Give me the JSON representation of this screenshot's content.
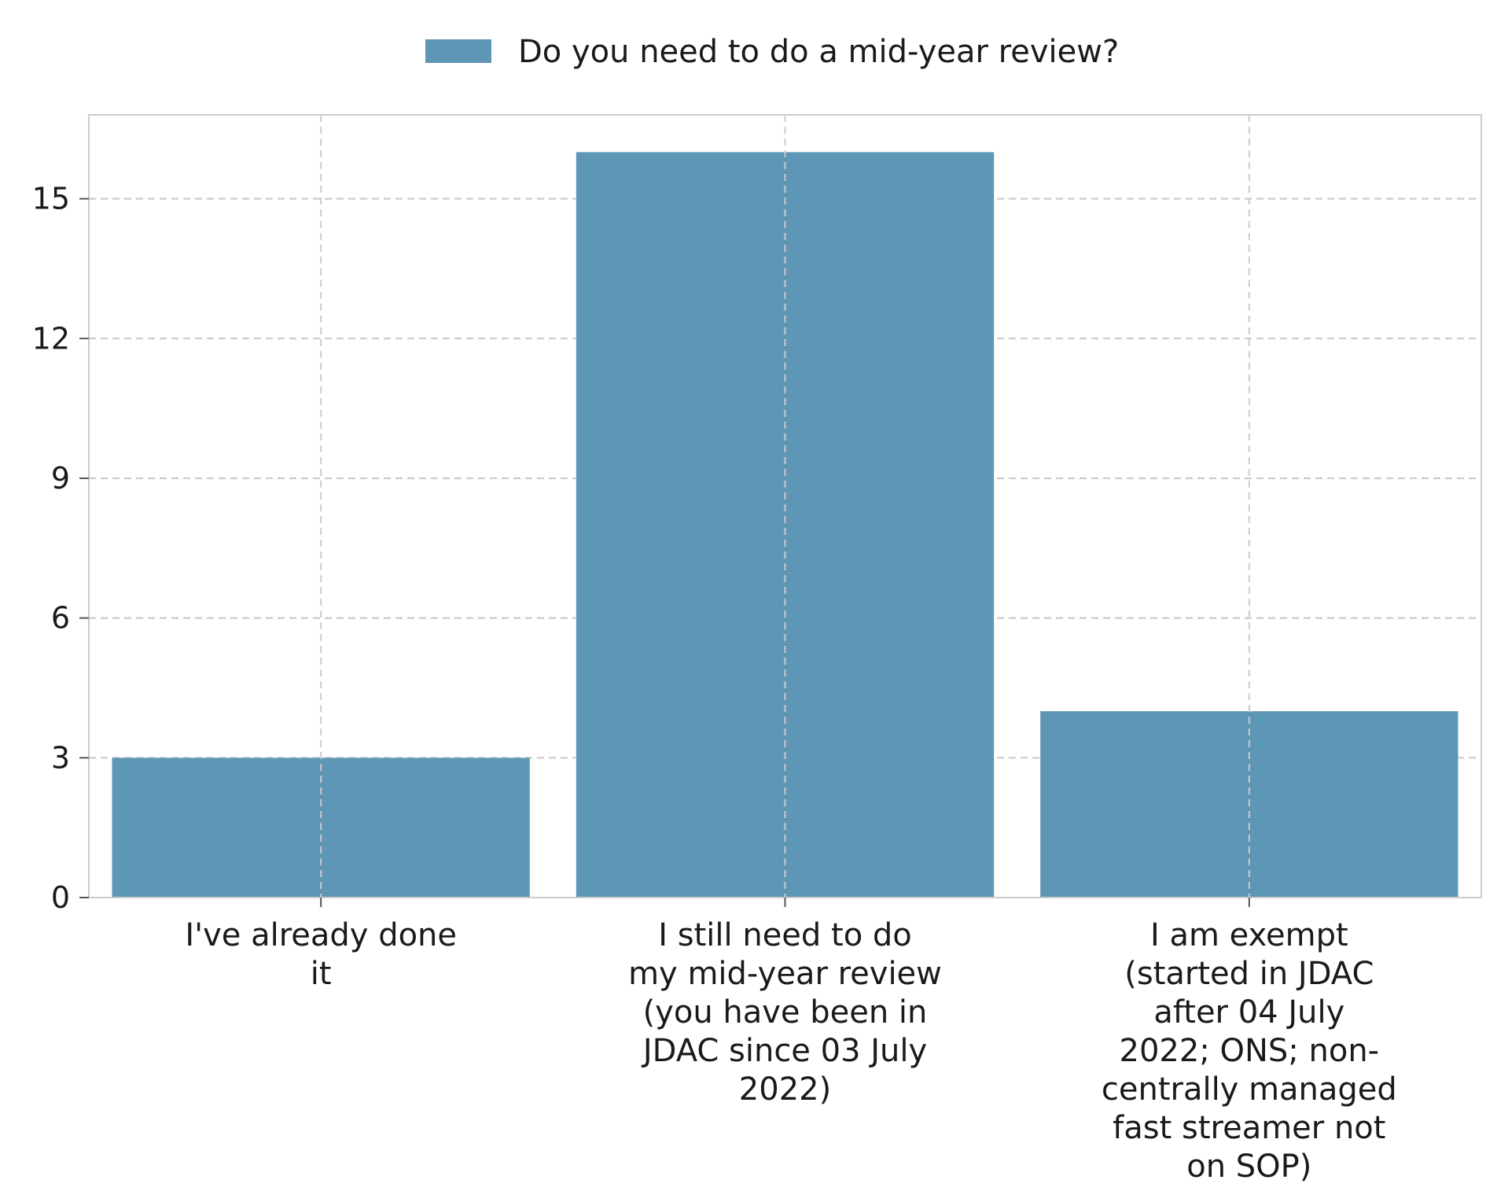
{
  "chart_data": {
    "type": "bar",
    "categories": [
      [
        "I've already done",
        "it"
      ],
      [
        "I still need to do",
        "my mid-year review",
        "(you have been in",
        "JDAC since 03 July",
        "2022)"
      ],
      [
        "I am exempt",
        "(started in JDAC",
        "after 04 July",
        "2022; ONS; non-",
        "centrally managed",
        "fast streamer not",
        "on SOP)"
      ]
    ],
    "series": [
      {
        "name": "Do you need to do a mid-year review?",
        "values": [
          3,
          16,
          4
        ]
      }
    ],
    "ylim": [
      0,
      16.8
    ],
    "yticks": [
      0,
      3,
      6,
      9,
      12,
      15
    ],
    "ytick_labels": [
      "0",
      "3",
      "6",
      "9",
      "12",
      "15"
    ],
    "grid": true,
    "legend_position": "top-center",
    "colors": {
      "bar": "#5e96b5",
      "grid": "#cccccc",
      "frame": "#cccccc"
    }
  }
}
